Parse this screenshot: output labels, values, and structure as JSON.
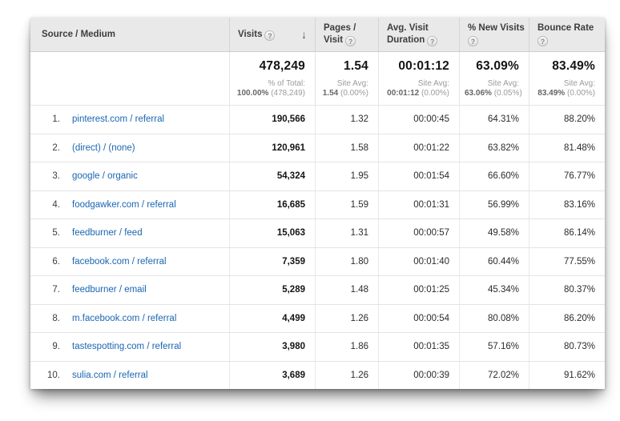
{
  "colors": {
    "header_bg": "#e9e9e9",
    "link": "#1a66b2",
    "divider": "#e4e4e4",
    "header_divider": "#d4d4d4",
    "muted_text": "#9b9b9b"
  },
  "icons": {
    "help": "?",
    "sort_desc": "↓"
  },
  "table": {
    "columns": [
      {
        "id": "source",
        "line1": "Source / Medium",
        "line2": ""
      },
      {
        "id": "visits",
        "line1": "Visits",
        "line2": ""
      },
      {
        "id": "pages",
        "line1": "Pages /",
        "line2": "Visit"
      },
      {
        "id": "duration",
        "line1": "Avg. Visit",
        "line2": "Duration"
      },
      {
        "id": "new_visits",
        "line1": "% New Visits",
        "line2": ""
      },
      {
        "id": "bounce",
        "line1": "Bounce Rate",
        "line2": ""
      }
    ],
    "summary": {
      "visits": {
        "value": "478,249",
        "label": "% of Total:",
        "avg": "100.00%",
        "delta": "(478,249)"
      },
      "pages": {
        "value": "1.54",
        "label": "Site Avg:",
        "avg": "1.54",
        "delta": "(0.00%)"
      },
      "duration": {
        "value": "00:01:12",
        "label": "Site Avg:",
        "avg": "00:01:12",
        "delta": "(0.00%)"
      },
      "new_visits": {
        "value": "63.09%",
        "label": "Site Avg:",
        "avg": "63.06%",
        "delta": "(0.05%)"
      },
      "bounce": {
        "value": "83.49%",
        "label": "Site Avg:",
        "avg": "83.49%",
        "delta": "(0.00%)"
      }
    },
    "rows": [
      {
        "rank": "1.",
        "source": "pinterest.com / referral",
        "visits": "190,566",
        "pages": "1.32",
        "duration": "00:00:45",
        "new_visits": "64.31%",
        "bounce": "88.20%"
      },
      {
        "rank": "2.",
        "source": "(direct) / (none)",
        "visits": "120,961",
        "pages": "1.58",
        "duration": "00:01:22",
        "new_visits": "63.82%",
        "bounce": "81.48%"
      },
      {
        "rank": "3.",
        "source": "google / organic",
        "visits": "54,324",
        "pages": "1.95",
        "duration": "00:01:54",
        "new_visits": "66.60%",
        "bounce": "76.77%"
      },
      {
        "rank": "4.",
        "source": "foodgawker.com / referral",
        "visits": "16,685",
        "pages": "1.59",
        "duration": "00:01:31",
        "new_visits": "56.99%",
        "bounce": "83.16%"
      },
      {
        "rank": "5.",
        "source": "feedburner / feed",
        "visits": "15,063",
        "pages": "1.31",
        "duration": "00:00:57",
        "new_visits": "49.58%",
        "bounce": "86.14%"
      },
      {
        "rank": "6.",
        "source": "facebook.com / referral",
        "visits": "7,359",
        "pages": "1.80",
        "duration": "00:01:40",
        "new_visits": "60.44%",
        "bounce": "77.55%"
      },
      {
        "rank": "7.",
        "source": "feedburner / email",
        "visits": "5,289",
        "pages": "1.48",
        "duration": "00:01:25",
        "new_visits": "45.34%",
        "bounce": "80.37%"
      },
      {
        "rank": "8.",
        "source": "m.facebook.com / referral",
        "visits": "4,499",
        "pages": "1.26",
        "duration": "00:00:54",
        "new_visits": "80.08%",
        "bounce": "86.20%"
      },
      {
        "rank": "9.",
        "source": "tastespotting.com / referral",
        "visits": "3,980",
        "pages": "1.86",
        "duration": "00:01:35",
        "new_visits": "57.16%",
        "bounce": "80.73%"
      },
      {
        "rank": "10.",
        "source": "sulia.com / referral",
        "visits": "3,689",
        "pages": "1.26",
        "duration": "00:00:39",
        "new_visits": "72.02%",
        "bounce": "91.62%"
      }
    ]
  }
}
